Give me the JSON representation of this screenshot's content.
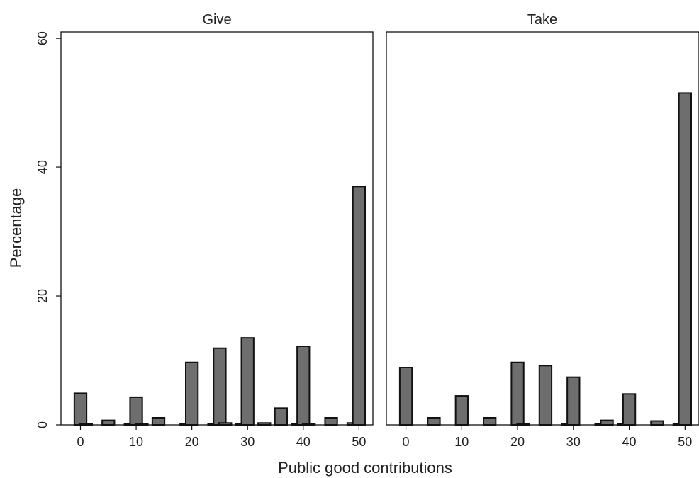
{
  "chart_data": {
    "type": "bar",
    "ylabel": "Percentage",
    "xlabel": "Public good contributions",
    "ylim": [
      0,
      61
    ],
    "xlim": [
      -3.5,
      52.5
    ],
    "yticks": [
      0,
      20,
      40,
      60
    ],
    "xticks": [
      0,
      10,
      20,
      30,
      40,
      50
    ],
    "grid": false,
    "bar_width": 2.2,
    "bar_color": "#6e6e6e",
    "edge_color": "#111111",
    "panels": [
      {
        "title": "Give",
        "x": [
          0,
          1,
          5,
          9,
          10,
          11,
          14,
          19,
          20,
          24,
          25,
          26,
          29,
          30,
          33,
          36,
          39,
          40,
          41,
          45,
          49,
          50
        ],
        "values": [
          4.9,
          0.2,
          0.7,
          0.2,
          4.3,
          0.2,
          1.1,
          0.2,
          9.7,
          0.2,
          11.9,
          0.3,
          0.2,
          13.5,
          0.3,
          2.6,
          0.2,
          12.2,
          0.2,
          1.1,
          0.3,
          37.0
        ]
      },
      {
        "title": "Take",
        "x": [
          0,
          5,
          10,
          15,
          20,
          21,
          25,
          29,
          30,
          35,
          36,
          39,
          40,
          45,
          49,
          50
        ],
        "values": [
          8.9,
          1.1,
          4.5,
          1.1,
          9.7,
          0.2,
          9.2,
          0.2,
          7.4,
          0.2,
          0.7,
          0.2,
          4.8,
          0.6,
          0.2,
          51.5
        ]
      }
    ]
  }
}
